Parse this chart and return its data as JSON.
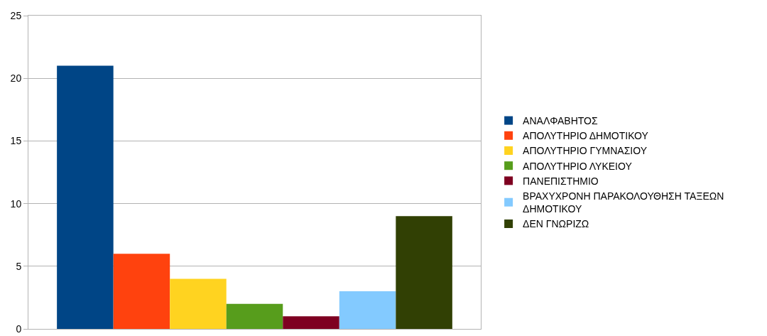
{
  "chart_data": {
    "type": "bar",
    "categories": [
      null
    ],
    "series": [
      {
        "name": "ΑΝΑΛΦΑΒΗΤΟΣ",
        "color": "#004586",
        "values": [
          21
        ]
      },
      {
        "name": "ΑΠΟΛΥΤΗΡΙΟ ΔΗΜΟΤΙΚΟΥ",
        "color": "#ff420e",
        "values": [
          6
        ]
      },
      {
        "name": "ΑΠΟΛΥΤΗΡΙΟ ΓΥΜΝΑΣΙΟΥ",
        "color": "#ffd320",
        "values": [
          4
        ]
      },
      {
        "name": "ΑΠΟΛΥΤΗΡΙΟ ΛΥΚΕΙΟΥ",
        "color": "#579d1c",
        "values": [
          2
        ]
      },
      {
        "name": "ΠΑΝΕΠΙΣΤΗΜΙΟ",
        "color": "#7e0021",
        "values": [
          1
        ]
      },
      {
        "name": "ΒΡΑΧΥΧΡΟΝΗ ΠΑΡΑΚΟΛΟΥΘΗΣΗ ΤΑΞΕΩΝ ΔΗΜΟΤΙΚΟΥ",
        "color": "#83caff",
        "values": [
          3
        ]
      },
      {
        "name": "ΔΕΝ ΓΝΩΡΙΖΩ",
        "color": "#314004",
        "values": [
          9
        ]
      }
    ],
    "ylim": [
      0,
      25
    ],
    "yticks": [
      0,
      5,
      10,
      15,
      20,
      25
    ],
    "grid": "y",
    "legend": "right"
  }
}
